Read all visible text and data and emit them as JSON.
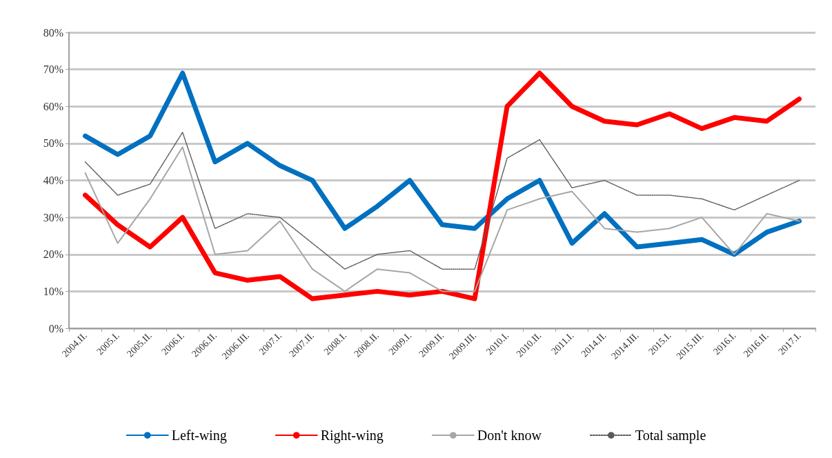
{
  "chart_data": {
    "type": "line",
    "categories": [
      "2004.II.",
      "2005.I.",
      "2005.II.",
      "2006.I.",
      "2006.II.",
      "2006.III.",
      "2007.I.",
      "2007.II.",
      "2008.I.",
      "2008.II.",
      "2009.I.",
      "2009.II.",
      "2009.III.",
      "2010.I.",
      "2010.II.",
      "2011.I.",
      "2014.II.",
      "2014.III.",
      "2015.I.",
      "2015.III.",
      "2016.I.",
      "2016.II.",
      "2017.I."
    ],
    "series": [
      {
        "name": "Left-wing",
        "color": "#0070c0",
        "line_style": "solid",
        "values": [
          52,
          47,
          52,
          69,
          45,
          50,
          44,
          40,
          27,
          33,
          40,
          28,
          27,
          35,
          40,
          23,
          31,
          22,
          23,
          24,
          20,
          26,
          29
        ]
      },
      {
        "name": "Right-wing",
        "color": "#ff0000",
        "line_style": "solid",
        "values": [
          36,
          28,
          22,
          30,
          15,
          13,
          14,
          8,
          9,
          10,
          9,
          10,
          8,
          60,
          69,
          60,
          56,
          55,
          58,
          54,
          57,
          56,
          62
        ]
      },
      {
        "name": "Don't know",
        "color": "#a6a6a6",
        "line_style": "solid",
        "values": [
          42,
          23,
          35,
          49,
          20,
          21,
          29,
          16,
          10,
          16,
          15,
          10,
          10,
          32,
          35,
          37,
          27,
          26,
          27,
          30,
          20,
          31,
          29
        ]
      },
      {
        "name": "Total sample",
        "color": "#595959",
        "line_style": "dotted",
        "values": [
          45,
          36,
          39,
          53,
          27,
          31,
          30,
          23,
          16,
          20,
          21,
          16,
          16,
          46,
          51,
          38,
          40,
          36,
          36,
          35,
          32,
          36,
          40
        ]
      }
    ],
    "ylim": [
      0,
      80
    ],
    "yticks": [
      {
        "value": 0,
        "label": "0%"
      },
      {
        "value": 10,
        "label": "10%"
      },
      {
        "value": 20,
        "label": "20%"
      },
      {
        "value": 30,
        "label": "30%"
      },
      {
        "value": 40,
        "label": "40%"
      },
      {
        "value": 50,
        "label": "50%"
      },
      {
        "value": 60,
        "label": "60%"
      },
      {
        "value": 70,
        "label": "70%"
      },
      {
        "value": 80,
        "label": "80%"
      }
    ],
    "grid": "y",
    "legend": "bottom",
    "marker": "none"
  }
}
